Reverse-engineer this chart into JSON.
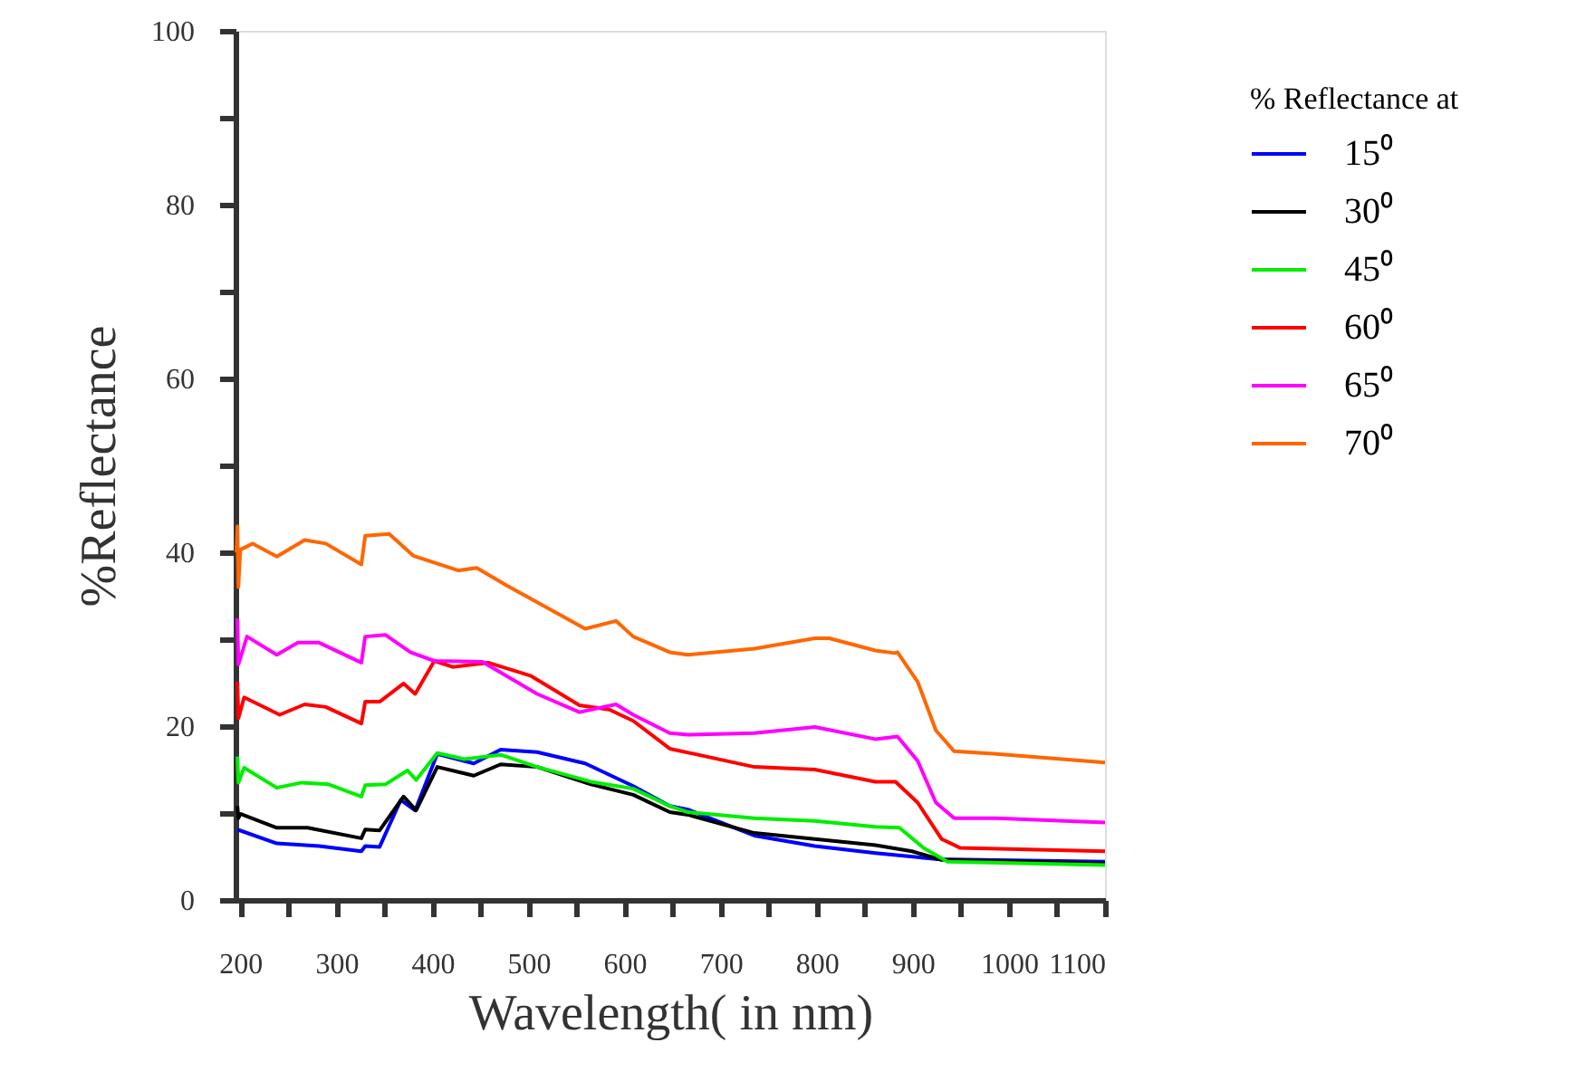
{
  "chart_data": {
    "type": "line",
    "xlabel": "Wavelength( in nm)",
    "ylabel": "%Reflectance",
    "legend_title": "% Reflectance at",
    "legend": "top right",
    "grid": false,
    "marker": "none",
    "line_style": "solid",
    "xlim": [
      195,
      1100
    ],
    "xticks": [
      200,
      {
        "value": 250,
        "label": null
      },
      300,
      {
        "value": 350,
        "label": null
      },
      400,
      {
        "value": 450,
        "label": null
      },
      500,
      {
        "value": 550,
        "label": null
      },
      600,
      {
        "value": 650,
        "label": null
      },
      700,
      {
        "value": 750,
        "label": null
      },
      800,
      {
        "value": 850,
        "label": null
      },
      900,
      {
        "value": 950,
        "label": null
      },
      1000,
      {
        "value": 1050,
        "label": null
      },
      1100
    ],
    "ylim": [
      0,
      100
    ],
    "yticks": [
      0,
      {
        "value": 10,
        "label": null
      },
      20,
      {
        "value": 30,
        "label": null
      },
      40,
      {
        "value": 50,
        "label": null
      },
      60,
      {
        "value": 70,
        "label": null
      },
      80,
      {
        "value": 90,
        "label": null
      },
      100
    ],
    "series": [
      {
        "name": "15⁰",
        "color": "#0000ff",
        "x": [
          197,
          238,
          282,
          326,
          330,
          345,
          367,
          382,
          405,
          443,
          471,
          509,
          559,
          609,
          647,
          666,
          735,
          798,
          861,
          924,
          1100
        ],
        "values": [
          8.1,
          6.5,
          6.2,
          5.6,
          6.2,
          6.1,
          11.5,
          10.3,
          16.8,
          15.7,
          17.3,
          17.0,
          15.7,
          13.1,
          10.8,
          10.4,
          7.4,
          6.2,
          5.4,
          4.7,
          4.4
        ]
      },
      {
        "name": "30⁰",
        "color": "#000000",
        "x": [
          197,
          198,
          200,
          238,
          270,
          326,
          330,
          345,
          370,
          383,
          405,
          443,
          471,
          509,
          565,
          609,
          647,
          666,
          735,
          798,
          861,
          899,
          930,
          1100
        ],
        "values": [
          10.8,
          9.4,
          9.9,
          8.3,
          8.3,
          7.1,
          8.1,
          8.0,
          11.9,
          10.3,
          15.3,
          14.3,
          15.6,
          15.3,
          13.3,
          12.1,
          10.1,
          9.8,
          7.7,
          7.0,
          6.3,
          5.6,
          4.6,
          4.2
        ]
      },
      {
        "name": "45⁰",
        "color": "#00ee00",
        "x": [
          197,
          198,
          204,
          238,
          264,
          292,
          326,
          330,
          351,
          374,
          383,
          405,
          433,
          471,
          509,
          565,
          609,
          647,
          666,
          735,
          798,
          861,
          886,
          911,
          936,
          1100
        ],
        "values": [
          16.5,
          13.5,
          15.2,
          12.9,
          13.5,
          13.3,
          11.9,
          13.2,
          13.3,
          14.9,
          13.8,
          16.9,
          16.2,
          16.7,
          15.3,
          13.6,
          12.8,
          10.8,
          10.1,
          9.4,
          9.1,
          8.4,
          8.3,
          6.0,
          4.4,
          4.0
        ]
      },
      {
        "name": "60⁰",
        "color": "#ff0000",
        "x": [
          197,
          198,
          204,
          241,
          267,
          289,
          326,
          330,
          345,
          370,
          382,
          402,
          421,
          458,
          502,
          553,
          584,
          609,
          647,
          735,
          798,
          861,
          882,
          905,
          930,
          949,
          1100
        ],
        "values": [
          25.1,
          20.9,
          23.3,
          21.3,
          22.5,
          22.2,
          20.3,
          22.8,
          22.8,
          24.9,
          23.7,
          27.5,
          26.8,
          27.3,
          25.8,
          22.4,
          21.9,
          20.6,
          17.4,
          15.3,
          15.0,
          13.6,
          13.6,
          11.2,
          7.0,
          6.0,
          5.6
        ]
      },
      {
        "name": "65⁰",
        "color": "#ff00ff",
        "x": [
          197,
          198,
          207,
          238,
          260,
          282,
          326,
          330,
          351,
          377,
          402,
          452,
          509,
          553,
          591,
          609,
          647,
          666,
          735,
          798,
          861,
          884,
          905,
          924,
          943,
          987,
          1100
        ],
        "values": [
          32.4,
          27.1,
          30.3,
          28.2,
          29.6,
          29.6,
          27.3,
          30.3,
          30.5,
          28.5,
          27.5,
          27.4,
          23.7,
          21.6,
          22.5,
          21.3,
          19.2,
          19.0,
          19.2,
          19.9,
          18.5,
          18.8,
          16.0,
          11.2,
          9.4,
          9.4,
          8.9
        ]
      },
      {
        "name": "70⁰",
        "color": "#ff6600",
        "x": [
          196,
          197,
          198,
          200,
          213,
          238,
          267,
          289,
          326,
          330,
          355,
          380,
          427,
          446,
          477,
          559,
          591,
          609,
          647,
          666,
          735,
          798,
          813,
          861,
          881,
          884,
          905,
          924,
          943,
          987,
          1100
        ],
        "values": [
          40.0,
          43.0,
          36.0,
          40.3,
          41.0,
          39.5,
          41.4,
          41.0,
          38.6,
          41.9,
          42.1,
          39.6,
          37.9,
          38.2,
          36.2,
          31.2,
          32.1,
          30.3,
          28.5,
          28.2,
          28.9,
          30.1,
          30.1,
          28.7,
          28.4,
          28.5,
          25.1,
          19.5,
          17.1,
          16.8,
          15.8
        ]
      }
    ]
  }
}
